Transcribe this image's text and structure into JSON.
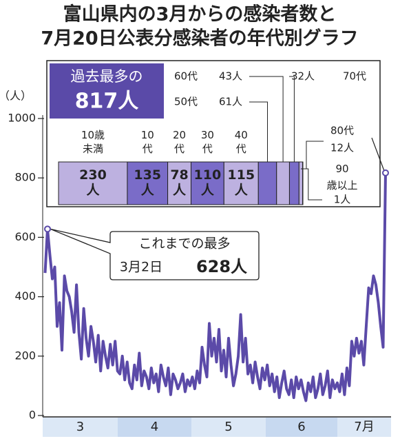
{
  "chart_data": [
    {
      "type": "line",
      "title": [
        "富山県内の3月からの感染者数と",
        "7月20日公表分感染者の年代別グラフ"
      ],
      "y_label": "（人）",
      "months": [
        "3",
        "4",
        "5",
        "6",
        "7月"
      ],
      "ylim": [
        0,
        1000
      ],
      "yticks": [
        0,
        200,
        400,
        600,
        800,
        1000
      ],
      "color": "#5b4aa8",
      "values": [
        480,
        628,
        540,
        460,
        500,
        300,
        380,
        220,
        470,
        420,
        400,
        350,
        280,
        440,
        280,
        190,
        360,
        260,
        200,
        300,
        250,
        180,
        270,
        150,
        250,
        200,
        160,
        240,
        170,
        250,
        150,
        140,
        200,
        120,
        180,
        110,
        90,
        170,
        120,
        210,
        100,
        150,
        130,
        90,
        160,
        110,
        140,
        80,
        170,
        130,
        100,
        160,
        70,
        140,
        120,
        90,
        110,
        140,
        80,
        120,
        100,
        130,
        90,
        150,
        110,
        230,
        170,
        130,
        310,
        200,
        260,
        180,
        290,
        150,
        220,
        130,
        260,
        170,
        100,
        140,
        200,
        340,
        180,
        260,
        140,
        170,
        110,
        180,
        130,
        90,
        160,
        120,
        170,
        100,
        140,
        80,
        130,
        60,
        110,
        150,
        90,
        70,
        120,
        60,
        130,
        90,
        120,
        80,
        50,
        110,
        80,
        130,
        60,
        90,
        140,
        70,
        100,
        150,
        60,
        120,
        90,
        110,
        80,
        140,
        70,
        160,
        100,
        250,
        200,
        260,
        210,
        250,
        170,
        300,
        430,
        410,
        470,
        440,
        380,
        300,
        230,
        817
      ],
      "annotations": {
        "peak_label": "これまでの最多",
        "peak_date": "3月2日",
        "peak_value": "628人"
      }
    },
    {
      "type": "stacked_bar",
      "title": [
        "過去最多の",
        "817人"
      ],
      "categories": [
        "10歳未満",
        "10代",
        "20代",
        "30代",
        "40代",
        "50代",
        "60代",
        "70代",
        "80代",
        "90歳以上"
      ],
      "values": [
        230,
        135,
        78,
        110,
        115,
        61,
        43,
        32,
        12,
        1
      ],
      "value_labels": [
        "230人",
        "135人",
        "78人",
        "110人",
        "115人",
        "61人",
        "43人",
        "32人",
        "12人",
        "1人"
      ],
      "colors": [
        "#bdb1e0",
        "#7a6cc8",
        "#bdb1e0",
        "#7a6cc8",
        "#bdb1e0",
        "#7a6cc8",
        "#bdb1e0",
        "#7a6cc8",
        "#bdb1e0",
        "#7a6cc8"
      ]
    }
  ]
}
